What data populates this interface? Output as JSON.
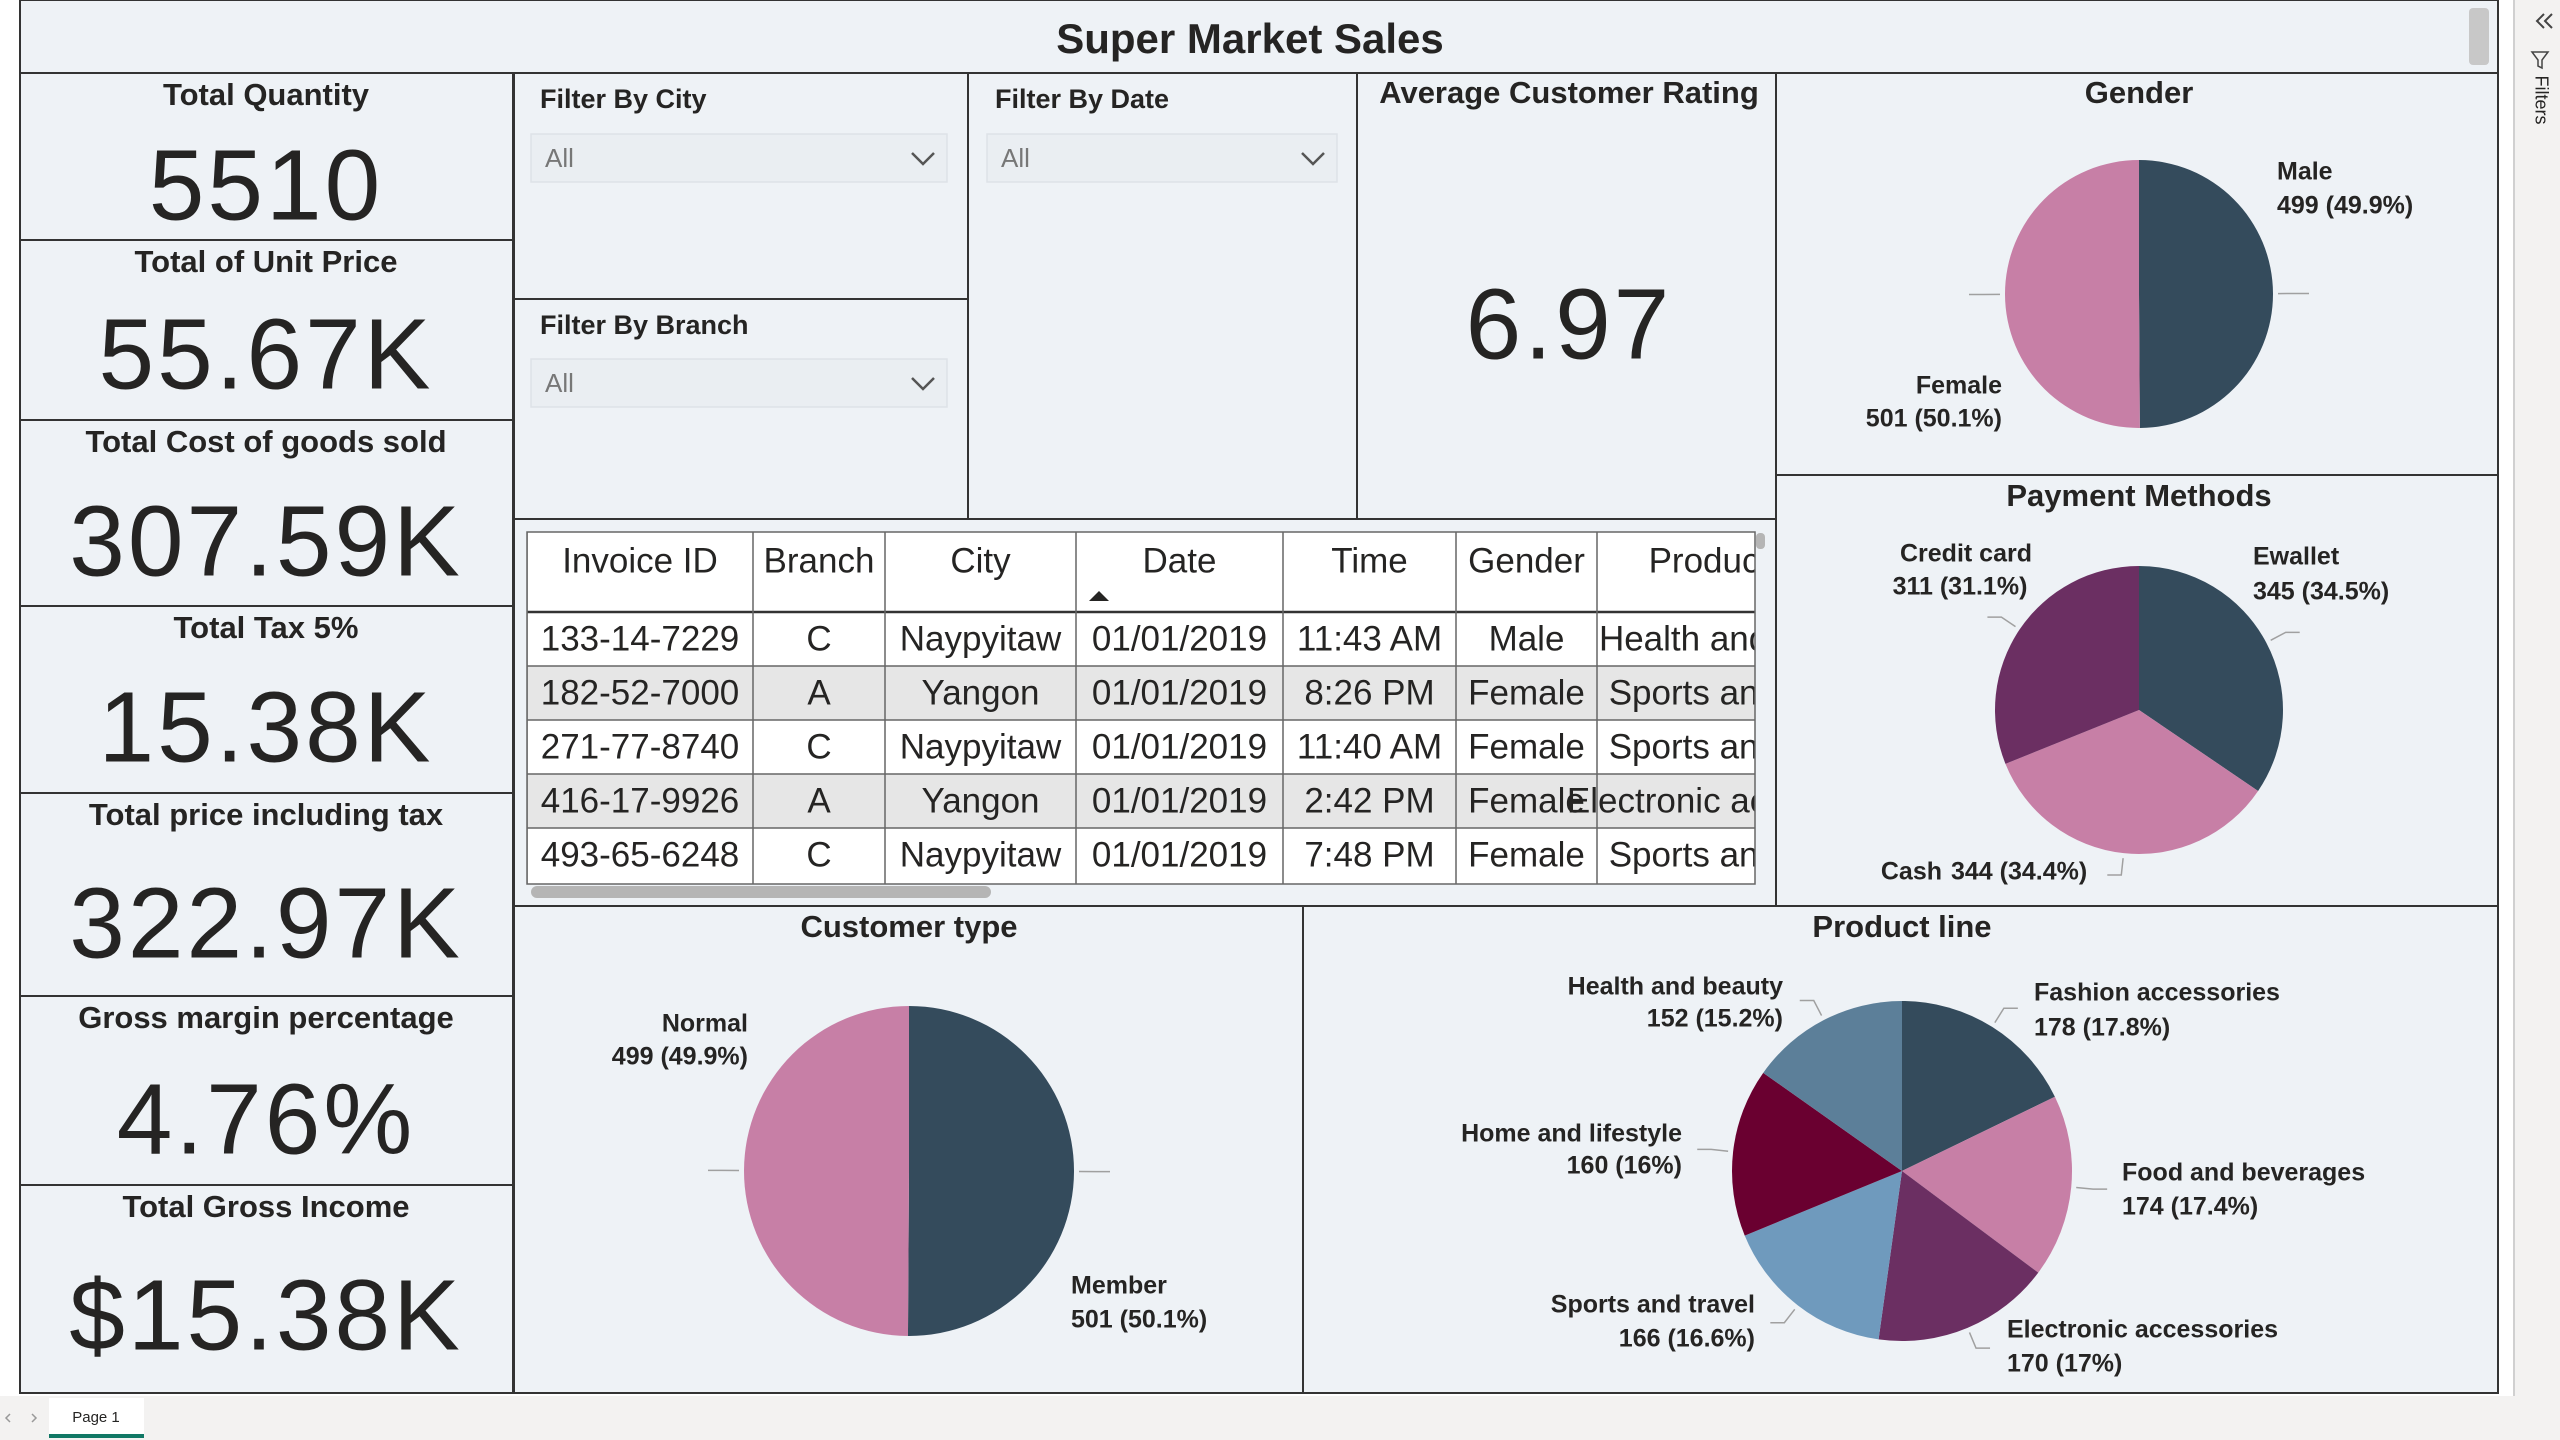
{
  "header": {
    "title": "Super Market Sales"
  },
  "kpis": [
    {
      "label": "Total Quantity",
      "value": "5510"
    },
    {
      "label": "Total of Unit Price",
      "value": "55.67K"
    },
    {
      "label": "Total Cost of goods sold",
      "value": "307.59K"
    },
    {
      "label": "Total Tax 5%",
      "value": "15.38K"
    },
    {
      "label": "Total price including tax",
      "value": "322.97K"
    },
    {
      "label": "Gross margin percentage",
      "value": "4.76%"
    },
    {
      "label": "Total Gross Income",
      "value": "$15.38K"
    }
  ],
  "filters": [
    {
      "label": "Filter By City",
      "value": "All"
    },
    {
      "label": "Filter By Branch",
      "value": "All"
    },
    {
      "label": "Filter By Date",
      "value": "All"
    }
  ],
  "rating": {
    "label": "Average Customer Rating",
    "value": "6.97"
  },
  "table": {
    "columns": [
      "Invoice ID",
      "Branch",
      "City",
      "Date",
      "Time",
      "Gender",
      "Product line"
    ],
    "rows": [
      [
        "133-14-7229",
        "C",
        "Naypyitaw",
        "01/01/2019",
        "11:43 AM",
        "Male",
        "Health and beauty"
      ],
      [
        "182-52-7000",
        "A",
        "Yangon",
        "01/01/2019",
        "8:26 PM",
        "Female",
        "Sports and travel"
      ],
      [
        "271-77-8740",
        "C",
        "Naypyitaw",
        "01/01/2019",
        "11:40 AM",
        "Female",
        "Sports and travel"
      ],
      [
        "416-17-9926",
        "A",
        "Yangon",
        "01/01/2019",
        "2:42 PM",
        "Female",
        "Electronic accessories"
      ],
      [
        "493-65-6248",
        "C",
        "Naypyitaw",
        "01/01/2019",
        "7:48 PM",
        "Female",
        "Sports and travel"
      ]
    ]
  },
  "chart_data": [
    {
      "type": "pie",
      "title": "Gender",
      "categories": [
        "Male",
        "Female"
      ],
      "values": [
        499,
        501
      ],
      "value_labels": [
        "499 (49.9%)",
        "501 (50.1%)"
      ],
      "colors": [
        "#344b5c",
        "#c77fa6"
      ]
    },
    {
      "type": "pie",
      "title": "Payment Methods",
      "categories": [
        "Ewallet",
        "Cash",
        "Credit card"
      ],
      "values": [
        345,
        344,
        311
      ],
      "value_labels": [
        "345 (34.5%)",
        "344 (34.4%)",
        "311 (31.1%)"
      ],
      "colors": [
        "#344b5c",
        "#c77fa6",
        "#6b2f62"
      ]
    },
    {
      "type": "pie",
      "title": "Customer type",
      "categories": [
        "Member",
        "Normal"
      ],
      "values": [
        501,
        499
      ],
      "value_labels": [
        "501 (50.1%)",
        "499 (49.9%)"
      ],
      "colors": [
        "#344b5c",
        "#c77fa6"
      ]
    },
    {
      "type": "pie",
      "title": "Product line",
      "categories": [
        "Fashion accessories",
        "Food and beverages",
        "Electronic accessories",
        "Sports and travel",
        "Home and lifestyle",
        "Health and beauty"
      ],
      "values": [
        178,
        174,
        170,
        166,
        160,
        152
      ],
      "value_labels": [
        "178 (17.8%)",
        "174 (17.4%)",
        "170 (17%)",
        "166 (16.6%)",
        "160 (16%)",
        "152 (15.2%)"
      ],
      "colors": [
        "#344b5c",
        "#c77fa6",
        "#6b2f62",
        "#6f9abd",
        "#6a0030",
        "#5c7f99"
      ]
    }
  ],
  "footer": {
    "tab": "Page 1"
  },
  "side_panel": {
    "label": "Filters"
  }
}
